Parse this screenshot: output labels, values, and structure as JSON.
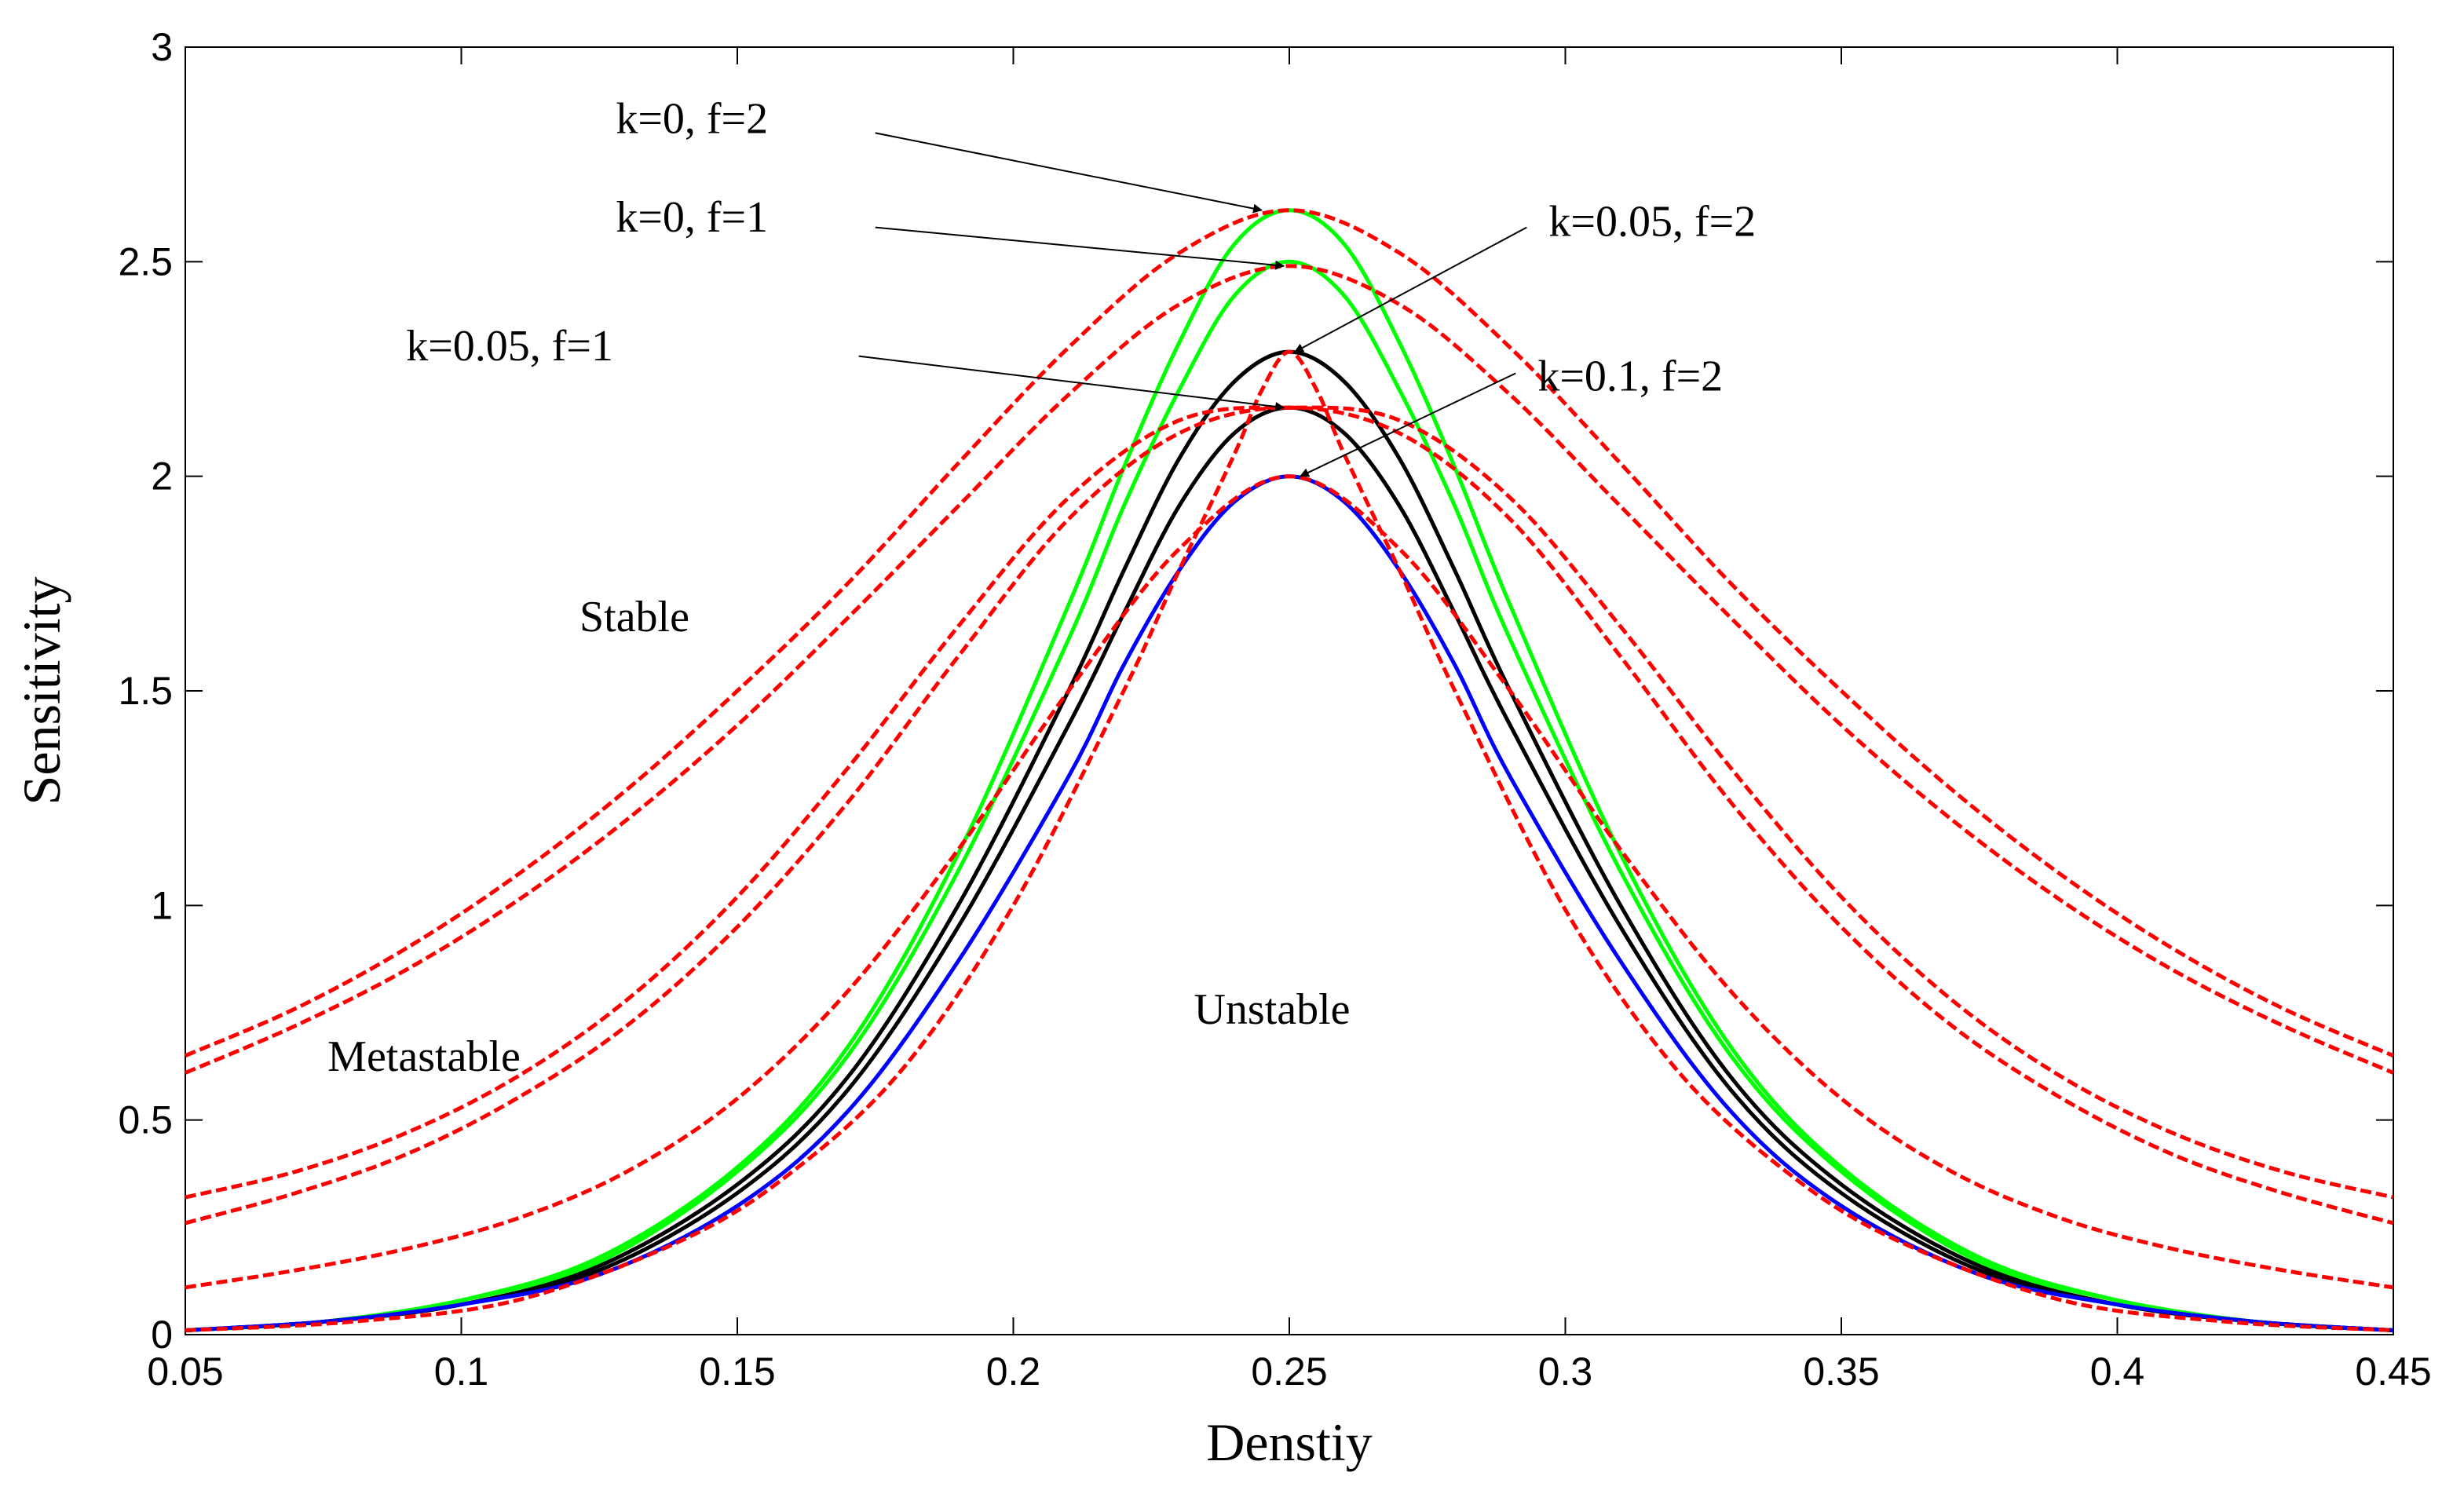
{
  "chart_data": {
    "type": "line",
    "xlabel": "Denstiy",
    "ylabel": "Sensitivity",
    "xlim": [
      0.05,
      0.45
    ],
    "ylim": [
      0,
      3
    ],
    "grid": false,
    "xticks": [
      "0.05",
      "0.1",
      "0.15",
      "0.2",
      "0.25",
      "0.3",
      "0.35",
      "0.4",
      "0.45"
    ],
    "yticks": [
      "0",
      "0.5",
      "1",
      "1.5",
      "2",
      "2.5",
      "3"
    ],
    "region_labels": [
      "Stable",
      "Metastable",
      "Unstable"
    ],
    "series": [
      {
        "color": "#ff0000",
        "style": "dashed",
        "x": [
          0.05,
          0.07,
          0.09,
          0.11,
          0.13,
          0.15,
          0.17,
          0.19,
          0.21,
          0.23,
          0.25,
          0.27,
          0.29,
          0.31,
          0.33,
          0.35,
          0.37,
          0.39,
          0.41,
          0.43,
          0.45
        ],
        "y": [
          0.65,
          0.76,
          0.9,
          1.07,
          1.27,
          1.5,
          1.75,
          2.03,
          2.3,
          2.52,
          2.62,
          2.52,
          2.3,
          2.03,
          1.75,
          1.5,
          1.27,
          1.07,
          0.9,
          0.76,
          0.65
        ]
      },
      {
        "color": "#ff0000",
        "style": "dashed",
        "x": [
          0.05,
          0.07,
          0.09,
          0.11,
          0.13,
          0.15,
          0.17,
          0.19,
          0.21,
          0.23,
          0.25,
          0.27,
          0.29,
          0.31,
          0.33,
          0.35,
          0.37,
          0.39,
          0.41,
          0.43,
          0.45
        ],
        "y": [
          0.61,
          0.72,
          0.85,
          1.01,
          1.2,
          1.42,
          1.67,
          1.93,
          2.19,
          2.4,
          2.49,
          2.4,
          2.19,
          1.93,
          1.67,
          1.42,
          1.2,
          1.01,
          0.85,
          0.72,
          0.61
        ]
      },
      {
        "color": "#ff0000",
        "style": "dashed",
        "x": [
          0.05,
          0.07,
          0.09,
          0.11,
          0.13,
          0.15,
          0.17,
          0.19,
          0.21,
          0.23,
          0.25,
          0.27,
          0.29,
          0.31,
          0.33,
          0.35,
          0.37,
          0.39,
          0.41,
          0.43,
          0.45
        ],
        "y": [
          0.32,
          0.38,
          0.47,
          0.6,
          0.78,
          1.02,
          1.32,
          1.65,
          1.95,
          2.13,
          2.16,
          2.13,
          1.95,
          1.65,
          1.32,
          1.02,
          0.78,
          0.6,
          0.47,
          0.38,
          0.32
        ]
      },
      {
        "color": "#ff0000",
        "style": "dashed",
        "x": [
          0.05,
          0.07,
          0.09,
          0.11,
          0.13,
          0.15,
          0.17,
          0.19,
          0.21,
          0.23,
          0.25,
          0.27,
          0.29,
          0.31,
          0.33,
          0.35,
          0.37,
          0.39,
          0.41,
          0.43,
          0.45
        ],
        "y": [
          0.26,
          0.33,
          0.42,
          0.55,
          0.72,
          0.95,
          1.24,
          1.58,
          1.9,
          2.1,
          2.16,
          2.1,
          1.9,
          1.58,
          1.24,
          0.95,
          0.72,
          0.55,
          0.42,
          0.33,
          0.26
        ]
      },
      {
        "color": "#ff0000",
        "style": "dashed",
        "x": [
          0.05,
          0.07,
          0.09,
          0.11,
          0.13,
          0.15,
          0.17,
          0.19,
          0.21,
          0.23,
          0.25,
          0.27,
          0.29,
          0.31,
          0.33,
          0.35,
          0.37,
          0.39,
          0.41,
          0.43,
          0.45
        ],
        "y": [
          0.11,
          0.15,
          0.2,
          0.27,
          0.38,
          0.55,
          0.8,
          1.13,
          1.5,
          1.83,
          2.0,
          1.83,
          1.5,
          1.13,
          0.8,
          0.55,
          0.38,
          0.27,
          0.2,
          0.15,
          0.11
        ]
      },
      {
        "color": "#ff0000",
        "style": "dashed",
        "x": [
          0.05,
          0.08,
          0.11,
          0.14,
          0.16,
          0.18,
          0.2,
          0.22,
          0.23,
          0.24,
          0.245,
          0.25,
          0.255,
          0.26,
          0.27,
          0.28,
          0.3,
          0.32,
          0.34,
          0.36,
          0.39,
          0.42,
          0.45
        ],
        "y": [
          0.01,
          0.03,
          0.08,
          0.22,
          0.38,
          0.62,
          1.0,
          1.5,
          1.78,
          2.05,
          2.2,
          2.29,
          2.2,
          2.05,
          1.78,
          1.5,
          0.99,
          0.62,
          0.38,
          0.22,
          0.08,
          0.03,
          0.01
        ]
      },
      {
        "color": "#00ff00",
        "style": "solid",
        "x": [
          0.05,
          0.075,
          0.1,
          0.125,
          0.15,
          0.17,
          0.19,
          0.21,
          0.22,
          0.23,
          0.24,
          0.25,
          0.26,
          0.27,
          0.28,
          0.29,
          0.31,
          0.33,
          0.35,
          0.375,
          0.4,
          0.425,
          0.45
        ],
        "y": [
          0.01,
          0.03,
          0.08,
          0.17,
          0.38,
          0.65,
          1.08,
          1.62,
          1.93,
          2.2,
          2.42,
          2.5,
          2.42,
          2.2,
          1.93,
          1.62,
          1.08,
          0.65,
          0.38,
          0.17,
          0.08,
          0.03,
          0.01
        ]
      },
      {
        "color": "#00ff00",
        "style": "solid",
        "x": [
          0.05,
          0.075,
          0.1,
          0.125,
          0.15,
          0.17,
          0.19,
          0.21,
          0.22,
          0.23,
          0.24,
          0.25,
          0.26,
          0.27,
          0.28,
          0.29,
          0.31,
          0.33,
          0.35,
          0.375,
          0.4,
          0.425,
          0.45
        ],
        "y": [
          0.01,
          0.03,
          0.08,
          0.18,
          0.39,
          0.67,
          1.12,
          1.7,
          2.02,
          2.31,
          2.54,
          2.62,
          2.54,
          2.31,
          2.02,
          1.7,
          1.12,
          0.67,
          0.39,
          0.18,
          0.08,
          0.03,
          0.01
        ]
      },
      {
        "color": "#000000",
        "style": "solid",
        "x": [
          0.05,
          0.075,
          0.1,
          0.125,
          0.15,
          0.17,
          0.19,
          0.21,
          0.22,
          0.23,
          0.24,
          0.25,
          0.26,
          0.27,
          0.28,
          0.29,
          0.31,
          0.33,
          0.35,
          0.375,
          0.4,
          0.425,
          0.45
        ],
        "y": [
          0.01,
          0.03,
          0.07,
          0.15,
          0.33,
          0.57,
          0.95,
          1.42,
          1.68,
          1.93,
          2.1,
          2.16,
          2.1,
          1.93,
          1.68,
          1.42,
          0.95,
          0.57,
          0.33,
          0.15,
          0.07,
          0.03,
          0.01
        ]
      },
      {
        "color": "#000000",
        "style": "solid",
        "x": [
          0.05,
          0.075,
          0.1,
          0.125,
          0.15,
          0.17,
          0.19,
          0.21,
          0.22,
          0.23,
          0.24,
          0.25,
          0.26,
          0.27,
          0.28,
          0.29,
          0.31,
          0.33,
          0.35,
          0.375,
          0.4,
          0.425,
          0.45
        ],
        "y": [
          0.01,
          0.03,
          0.07,
          0.16,
          0.35,
          0.6,
          1.0,
          1.5,
          1.78,
          2.04,
          2.22,
          2.29,
          2.22,
          2.04,
          1.78,
          1.5,
          1.0,
          0.6,
          0.35,
          0.16,
          0.07,
          0.03,
          0.01
        ]
      },
      {
        "color": "#0000ff",
        "style": "solid",
        "x": [
          0.05,
          0.075,
          0.1,
          0.125,
          0.15,
          0.17,
          0.19,
          0.21,
          0.22,
          0.23,
          0.24,
          0.25,
          0.26,
          0.27,
          0.28,
          0.29,
          0.31,
          0.33,
          0.35,
          0.375,
          0.4,
          0.425,
          0.45
        ],
        "y": [
          0.01,
          0.03,
          0.07,
          0.14,
          0.3,
          0.52,
          0.87,
          1.3,
          1.56,
          1.78,
          1.94,
          2.0,
          1.94,
          1.78,
          1.56,
          1.3,
          0.87,
          0.52,
          0.3,
          0.14,
          0.07,
          0.03,
          0.01
        ]
      }
    ],
    "annotations": [
      {
        "text": "k=0, f=2",
        "label_x": 0.128,
        "label_y": 2.8,
        "tail_x": 0.175,
        "tail_y": 2.8,
        "head_x": 0.245,
        "head_y": 2.62
      },
      {
        "text": "k=0, f=1",
        "label_x": 0.128,
        "label_y": 2.57,
        "tail_x": 0.175,
        "tail_y": 2.58,
        "head_x": 0.249,
        "head_y": 2.49
      },
      {
        "text": "k=0.05, f=2",
        "label_x": 0.297,
        "label_y": 2.56,
        "tail_x": 0.293,
        "tail_y": 2.58,
        "head_x": 0.251,
        "head_y": 2.29
      },
      {
        "text": "k=0.05, f=1",
        "label_x": 0.09,
        "label_y": 2.27,
        "tail_x": 0.172,
        "tail_y": 2.28,
        "head_x": 0.249,
        "head_y": 2.16
      },
      {
        "text": "k=0.1, f=2",
        "label_x": 0.295,
        "label_y": 2.2,
        "tail_x": 0.291,
        "tail_y": 2.24,
        "head_x": 0.252,
        "head_y": 2.0
      }
    ]
  }
}
